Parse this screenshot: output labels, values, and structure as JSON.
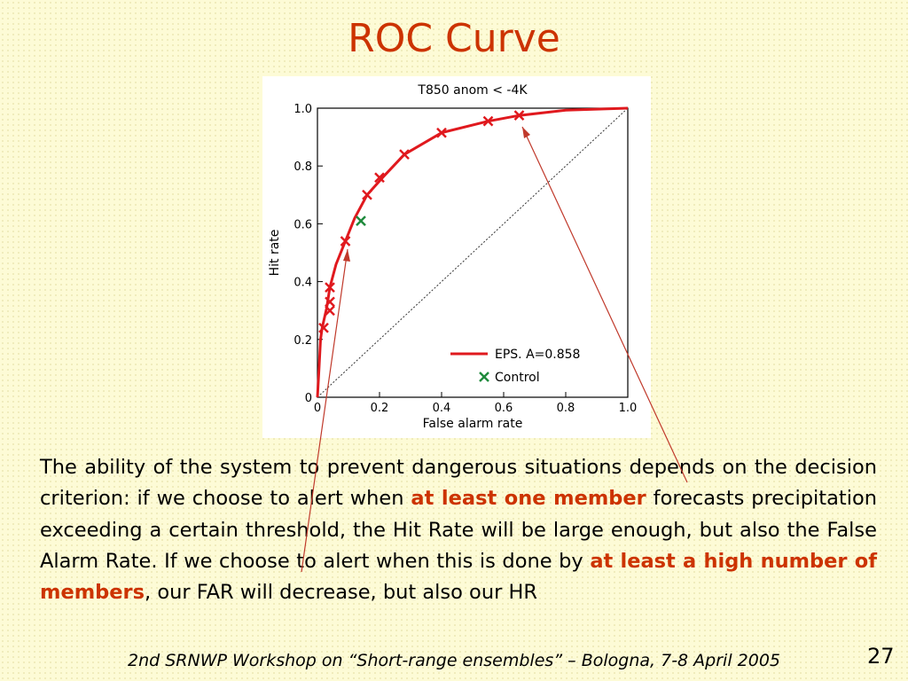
{
  "slide": {
    "title": "ROC Curve",
    "page_number": "27",
    "footer": "2nd SRNWP Workshop on “Short-range ensembles” – Bologna, 7-8 April 2005",
    "paragraph": {
      "part1": "The ability of the system to prevent dangerous situations depends on the decision criterion: if we choose to alert when ",
      "highlight1": "at least one member",
      "part2": " forecasts precipitation exceeding a certain threshold, the Hit Rate will be large enough, but also the False Alarm Rate. If we choose to alert when this is done by ",
      "highlight2": "at least a high number of members",
      "part3": ", our FAR will decrease, but also our HR"
    },
    "colors": {
      "title": "#cc3300",
      "highlight": "#cc3300",
      "eps": "#e0191e",
      "control": "#1f8a3c",
      "arrow": "#c0392b"
    }
  },
  "chart_data": {
    "type": "line",
    "title": "T850 anom < -4K",
    "xlabel": "False alarm rate",
    "ylabel": "Hit rate",
    "xlim": [
      0,
      1
    ],
    "ylim": [
      0,
      1
    ],
    "x_ticks": [
      "0",
      "0.2",
      "0.4",
      "0.6",
      "0.8",
      "1.0"
    ],
    "y_ticks": [
      "0",
      "0.2",
      "0.4",
      "0.6",
      "0.8",
      "1.0"
    ],
    "grid": false,
    "legend_position": "bottom-right",
    "series": [
      {
        "name": "EPS. A=0.858",
        "curve": [
          {
            "x": 0,
            "y": 0
          },
          {
            "x": 0.005,
            "y": 0.1
          },
          {
            "x": 0.01,
            "y": 0.2
          },
          {
            "x": 0.015,
            "y": 0.24
          },
          {
            "x": 0.03,
            "y": 0.31
          },
          {
            "x": 0.04,
            "y": 0.38
          },
          {
            "x": 0.06,
            "y": 0.46
          },
          {
            "x": 0.09,
            "y": 0.54
          },
          {
            "x": 0.12,
            "y": 0.62
          },
          {
            "x": 0.16,
            "y": 0.7
          },
          {
            "x": 0.21,
            "y": 0.76
          },
          {
            "x": 0.28,
            "y": 0.84
          },
          {
            "x": 0.4,
            "y": 0.915
          },
          {
            "x": 0.55,
            "y": 0.955
          },
          {
            "x": 0.65,
            "y": 0.975
          },
          {
            "x": 0.8,
            "y": 0.993
          },
          {
            "x": 1.0,
            "y": 1.0
          }
        ],
        "markers": [
          {
            "x": 0.02,
            "y": 0.24
          },
          {
            "x": 0.04,
            "y": 0.3
          },
          {
            "x": 0.04,
            "y": 0.33
          },
          {
            "x": 0.04,
            "y": 0.38
          },
          {
            "x": 0.09,
            "y": 0.54
          },
          {
            "x": 0.16,
            "y": 0.7
          },
          {
            "x": 0.2,
            "y": 0.76
          },
          {
            "x": 0.28,
            "y": 0.84
          },
          {
            "x": 0.4,
            "y": 0.915
          },
          {
            "x": 0.55,
            "y": 0.955
          },
          {
            "x": 0.65,
            "y": 0.975
          }
        ]
      },
      {
        "name": "Control",
        "markers": [
          {
            "x": 0.14,
            "y": 0.61
          }
        ]
      }
    ],
    "diagonal": {
      "from": [
        0,
        0
      ],
      "to": [
        1,
        1
      ]
    }
  }
}
